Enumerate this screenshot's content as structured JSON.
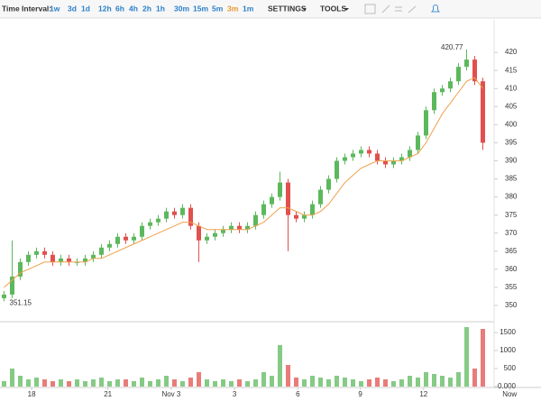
{
  "toolbar": {
    "label": "Time Interval:",
    "intervals": [
      "1w",
      "3d",
      "1d",
      "12h",
      "6h",
      "4h",
      "2h",
      "1h",
      "30m",
      "15m",
      "5m",
      "3m",
      "1m"
    ],
    "selected": 11,
    "menus": [
      "SETTINGS",
      "TOOLS"
    ]
  },
  "chart_data": {
    "type": "candlestick",
    "x": [
      0.5,
      1.5,
      2.5,
      3.5,
      4.5,
      5.5,
      6.5,
      7.5,
      8.5,
      9.5,
      10.5,
      11.5,
      12.5,
      13.5,
      14.5,
      15.5,
      16.5,
      17.5,
      18.5,
      19.5,
      20.5,
      21.5,
      22.5,
      23.5,
      24.5,
      25.5,
      26.5,
      27.5,
      28.5,
      29.5,
      30.5,
      31.5,
      32.5,
      33.5,
      34.5,
      35.5,
      36.5,
      37.5,
      38.5,
      39.5,
      40.5,
      41.5,
      42.5,
      43.5,
      44.5,
      45.5,
      46.5,
      47.5,
      48.5,
      49.5,
      50.5,
      51.5,
      52.5,
      53.5,
      54.5,
      55.5,
      56.5,
      57.5,
      58.5,
      59.5
    ],
    "open": [
      352,
      353,
      358,
      362,
      364,
      365,
      364,
      362,
      363,
      362,
      362,
      363,
      364,
      366,
      367,
      369,
      368,
      369,
      372,
      373,
      374,
      376,
      375,
      377,
      372,
      368,
      369,
      370,
      371,
      372,
      371,
      372,
      375,
      378,
      380,
      384,
      375,
      374,
      375,
      378,
      382,
      385,
      390,
      391,
      392,
      393,
      392,
      390,
      389,
      390,
      391,
      393,
      397,
      404,
      409,
      410,
      412,
      416,
      418,
      412
    ],
    "high": [
      354,
      368,
      363,
      365,
      366,
      366,
      365,
      364,
      364,
      363,
      364,
      365,
      367,
      368,
      370,
      370,
      370,
      373,
      374,
      375,
      377,
      377,
      378,
      378,
      373,
      370,
      371,
      372,
      373,
      373,
      373,
      376,
      379,
      381,
      387,
      385,
      376,
      376,
      379,
      383,
      386,
      391,
      392,
      393,
      394,
      394,
      393,
      391,
      391,
      392,
      394,
      398,
      405,
      410,
      411,
      413,
      417,
      420.77,
      419,
      413
    ],
    "low": [
      351.15,
      352,
      357,
      361,
      363,
      363,
      361,
      361,
      361,
      361,
      361,
      362,
      363,
      365,
      366,
      367,
      367,
      368,
      371,
      372,
      373,
      374,
      374,
      371,
      362,
      367,
      368,
      369,
      370,
      370,
      370,
      371,
      374,
      377,
      379,
      365,
      373,
      373,
      374,
      377,
      381,
      384,
      389,
      390,
      391,
      391,
      389,
      388,
      388,
      389,
      390,
      392,
      396,
      403,
      408,
      409,
      411,
      415,
      411,
      393
    ],
    "close": [
      353,
      358,
      362,
      364,
      365,
      364,
      362,
      363,
      362,
      362,
      363,
      364,
      366,
      367,
      369,
      368,
      369,
      372,
      373,
      374,
      376,
      375,
      377,
      372,
      368,
      369,
      370,
      371,
      372,
      371,
      372,
      375,
      378,
      380,
      384,
      375,
      374,
      375,
      378,
      382,
      385,
      390,
      391,
      392,
      393,
      392,
      390,
      389,
      390,
      391,
      393,
      397,
      404,
      409,
      410,
      412,
      416,
      418,
      412,
      395
    ],
    "volume": [
      150,
      500,
      300,
      200,
      250,
      200,
      150,
      200,
      150,
      200,
      150,
      200,
      250,
      150,
      200,
      200,
      150,
      250,
      150,
      200,
      300,
      200,
      150,
      250,
      400,
      200,
      150,
      200,
      150,
      200,
      150,
      200,
      400,
      300,
      1150,
      600,
      250,
      200,
      300,
      250,
      200,
      300,
      250,
      200,
      150,
      200,
      250,
      200,
      150,
      200,
      300,
      250,
      400,
      350,
      300,
      250,
      400,
      1650,
      500,
      1600
    ],
    "ma": [
      355,
      357,
      359,
      360,
      361,
      362,
      362,
      362,
      362,
      362,
      362,
      363,
      363,
      364,
      365,
      366,
      367,
      368,
      369,
      370,
      371,
      372,
      373,
      373,
      372,
      371,
      371,
      371,
      371,
      371,
      371,
      372,
      373,
      375,
      377,
      377,
      376,
      375,
      375,
      376,
      378,
      381,
      384,
      386,
      388,
      389,
      390,
      390,
      390,
      390,
      391,
      392,
      395,
      399,
      403,
      406,
      409,
      412,
      413,
      410
    ],
    "up_color": "#5cb85c",
    "down_color": "#e0504e",
    "ma_color": "#f0a04b",
    "xlim": [
      0,
      65
    ],
    "xticks": [
      {
        "value": 3.9,
        "label": "18"
      },
      {
        "value": 13.3,
        "label": "21"
      },
      {
        "value": 21.1,
        "label": "Nov 3"
      },
      {
        "value": 28.9,
        "label": "3"
      },
      {
        "value": 36.7,
        "label": "6"
      },
      {
        "value": 44.4,
        "label": "9"
      },
      {
        "value": 52.2,
        "label": "12"
      },
      {
        "value": 62.8,
        "label": "Now"
      }
    ],
    "ylim": [
      346,
      429
    ],
    "yticks": [
      350,
      355,
      360,
      365,
      370,
      375,
      380,
      385,
      390,
      395,
      400,
      405,
      410,
      415,
      420
    ],
    "y2lim": [
      0,
      1750
    ],
    "y2ticks": [
      {
        "value": 0,
        "label": "0.000"
      },
      500,
      1000,
      1500
    ]
  }
}
